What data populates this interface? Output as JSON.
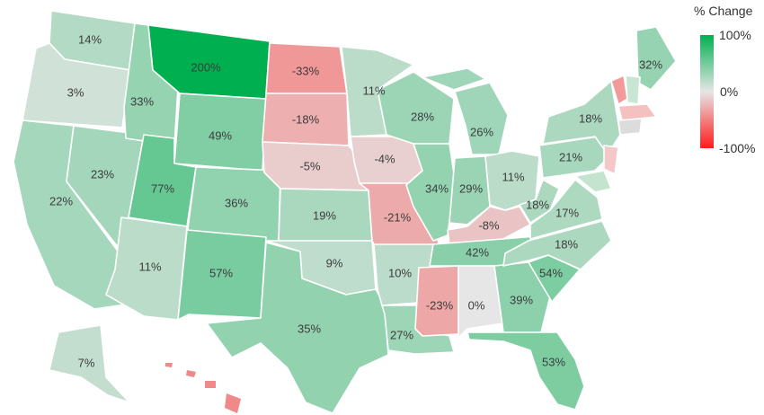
{
  "legend": {
    "title": "% Change",
    "max_label": "100%",
    "mid_label": "0%",
    "min_label": "-100%",
    "colors": {
      "max": "#00b050",
      "mid": "#e6e6e6",
      "min": "#ff1a1a"
    }
  },
  "states": [
    {
      "id": "WA",
      "label": "14%",
      "value": 14
    },
    {
      "id": "OR",
      "label": "3%",
      "value": 3
    },
    {
      "id": "CA",
      "label": "22%",
      "value": 22
    },
    {
      "id": "NV",
      "label": "23%",
      "value": 23
    },
    {
      "id": "ID",
      "label": "33%",
      "value": 33
    },
    {
      "id": "MT",
      "label": "200%",
      "value": 200
    },
    {
      "id": "WY",
      "label": "49%",
      "value": 49
    },
    {
      "id": "UT",
      "label": "77%",
      "value": 77
    },
    {
      "id": "AZ",
      "label": "11%",
      "value": 11
    },
    {
      "id": "CO",
      "label": "36%",
      "value": 36
    },
    {
      "id": "NM",
      "label": "57%",
      "value": 57
    },
    {
      "id": "ND",
      "label": "-33%",
      "value": -33
    },
    {
      "id": "SD",
      "label": "-18%",
      "value": -18
    },
    {
      "id": "NE",
      "label": "-5%",
      "value": -5
    },
    {
      "id": "KS",
      "label": "19%",
      "value": 19
    },
    {
      "id": "OK",
      "label": "9%",
      "value": 9
    },
    {
      "id": "TX",
      "label": "35%",
      "value": 35
    },
    {
      "id": "MN",
      "label": "11%",
      "value": 11
    },
    {
      "id": "IA",
      "label": "-4%",
      "value": -4
    },
    {
      "id": "MO",
      "label": "-21%",
      "value": -21
    },
    {
      "id": "AR",
      "label": "10%",
      "value": 10
    },
    {
      "id": "LA",
      "label": "27%",
      "value": 27
    },
    {
      "id": "WI",
      "label": "28%",
      "value": 28
    },
    {
      "id": "IL",
      "label": "34%",
      "value": 34
    },
    {
      "id": "MI",
      "label": "26%",
      "value": 26
    },
    {
      "id": "IN",
      "label": "29%",
      "value": 29
    },
    {
      "id": "OH",
      "label": "11%",
      "value": 11
    },
    {
      "id": "KY",
      "label": "-8%",
      "value": -8
    },
    {
      "id": "TN",
      "label": "42%",
      "value": 42
    },
    {
      "id": "MS",
      "label": "-23%",
      "value": -23
    },
    {
      "id": "AL",
      "label": "0%",
      "value": 0
    },
    {
      "id": "GA",
      "label": "39%",
      "value": 39
    },
    {
      "id": "FL",
      "label": "53%",
      "value": 53
    },
    {
      "id": "SC",
      "label": "54%",
      "value": 54
    },
    {
      "id": "NC",
      "label": "18%",
      "value": 18
    },
    {
      "id": "VA",
      "label": "17%",
      "value": 17
    },
    {
      "id": "WV",
      "label": "18%",
      "value": 18
    },
    {
      "id": "PA",
      "label": "21%",
      "value": 21
    },
    {
      "id": "NY",
      "label": "18%",
      "value": 18
    },
    {
      "id": "ME",
      "label": "32%",
      "value": 32
    },
    {
      "id": "AK",
      "label": "7%",
      "value": 7
    }
  ]
}
